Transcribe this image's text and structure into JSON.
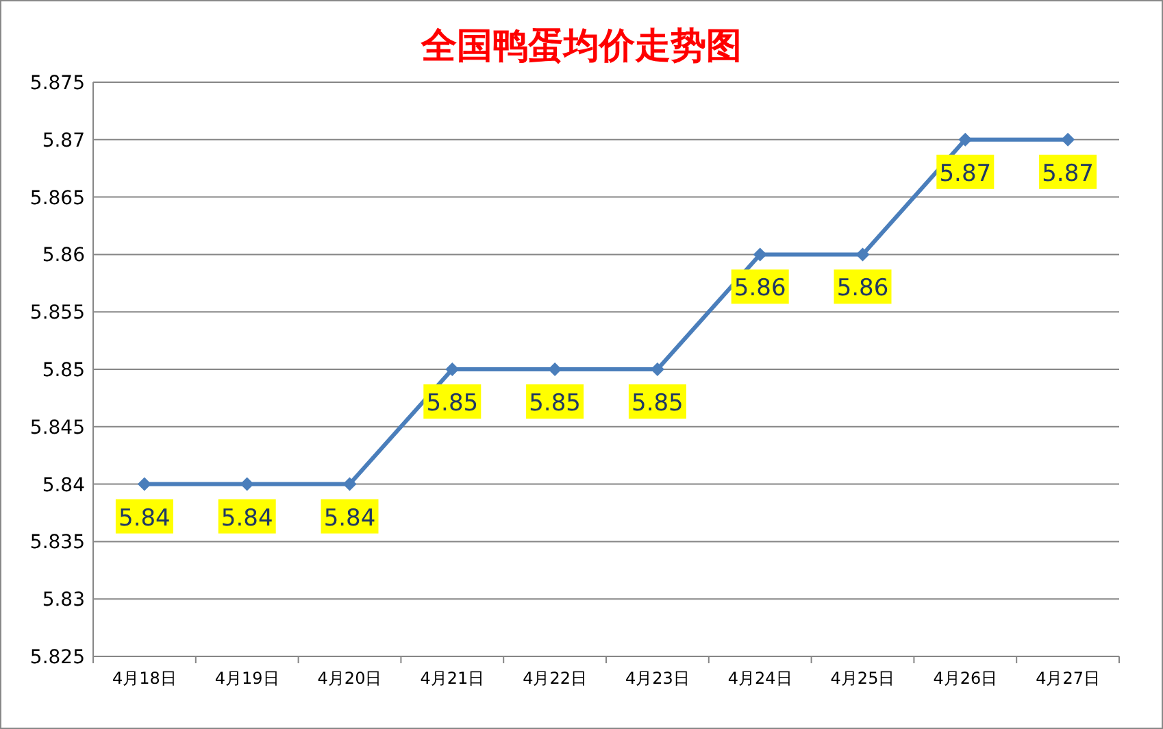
{
  "chart_data": {
    "type": "line",
    "title": "全国鸭蛋均价走势图",
    "categories": [
      "4月18日",
      "4月19日",
      "4月20日",
      "4月21日",
      "4月22日",
      "4月23日",
      "4月24日",
      "4月25日",
      "4月26日",
      "4月27日"
    ],
    "values": [
      5.84,
      5.84,
      5.84,
      5.85,
      5.85,
      5.85,
      5.86,
      5.86,
      5.87,
      5.87
    ],
    "color": "#4a7ebb",
    "marker": "diamond",
    "line_style": "solid",
    "data_labels": true,
    "grid": "y",
    "ylim": [
      5.825,
      5.875
    ],
    "yticks": [
      5.825,
      5.83,
      5.835,
      5.84,
      5.845,
      5.85,
      5.855,
      5.86,
      5.865,
      5.87,
      5.875
    ]
  }
}
